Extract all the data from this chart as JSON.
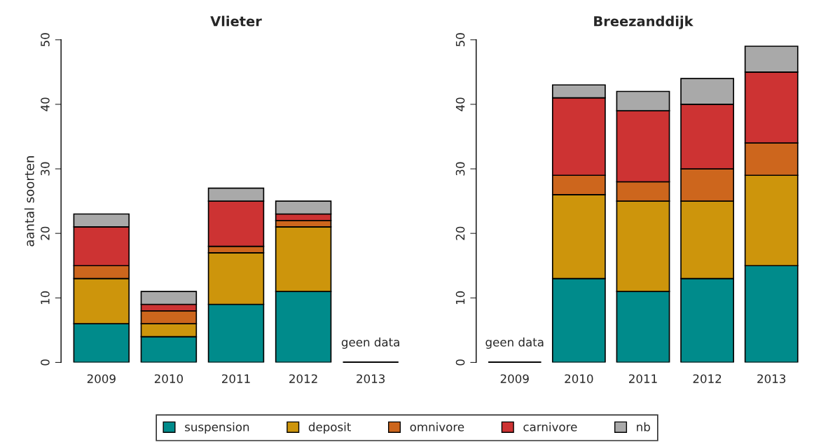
{
  "chart_data": [
    {
      "type": "bar",
      "title": "Vlieter",
      "ylabel": "aantal soorten",
      "stacked": true,
      "categories": [
        "2009",
        "2010",
        "2011",
        "2012",
        "2013"
      ],
      "ylim": [
        0,
        50
      ],
      "yticks": [
        0,
        10,
        20,
        30,
        40,
        50
      ],
      "grid": false,
      "legend": "bottom",
      "series": [
        {
          "name": "suspension",
          "color": "#008b8b",
          "values": [
            6,
            4,
            9,
            11,
            0
          ]
        },
        {
          "name": "deposit",
          "color": "#cd950c",
          "values": [
            7,
            2,
            8,
            10,
            0
          ]
        },
        {
          "name": "omnivore",
          "color": "#cd661d",
          "values": [
            2,
            2,
            1,
            1,
            0
          ]
        },
        {
          "name": "carnivore",
          "color": "#cd3333",
          "values": [
            6,
            1,
            7,
            1,
            0
          ]
        },
        {
          "name": "nb",
          "color": "#a9a9a9",
          "values": [
            2,
            2,
            2,
            2,
            0
          ]
        }
      ],
      "annotations": [
        {
          "text": "geen data",
          "x": "2013",
          "y": 0
        }
      ]
    },
    {
      "type": "bar",
      "title": "Breezanddijk",
      "stacked": true,
      "categories": [
        "2009",
        "2010",
        "2011",
        "2012",
        "2013"
      ],
      "ylim": [
        0,
        50
      ],
      "yticks": [
        0,
        10,
        20,
        30,
        40,
        50
      ],
      "grid": false,
      "legend": "bottom",
      "series": [
        {
          "color": "#008b8b",
          "values": [
            0,
            13,
            11,
            13,
            15
          ]
        },
        {
          "color": "#cd950c",
          "values": [
            0,
            13,
            14,
            12,
            14
          ]
        },
        {
          "color": "#cd661d",
          "values": [
            0,
            3,
            3,
            5,
            5
          ]
        },
        {
          "color": "#cd3333",
          "values": [
            0,
            12,
            11,
            10,
            11
          ]
        },
        {
          "color": "#a9a9a9",
          "values": [
            0,
            2,
            3,
            4,
            4
          ]
        }
      ],
      "annotations": [
        {
          "text": "geen data",
          "x": "2009",
          "y": 0
        }
      ]
    }
  ]
}
